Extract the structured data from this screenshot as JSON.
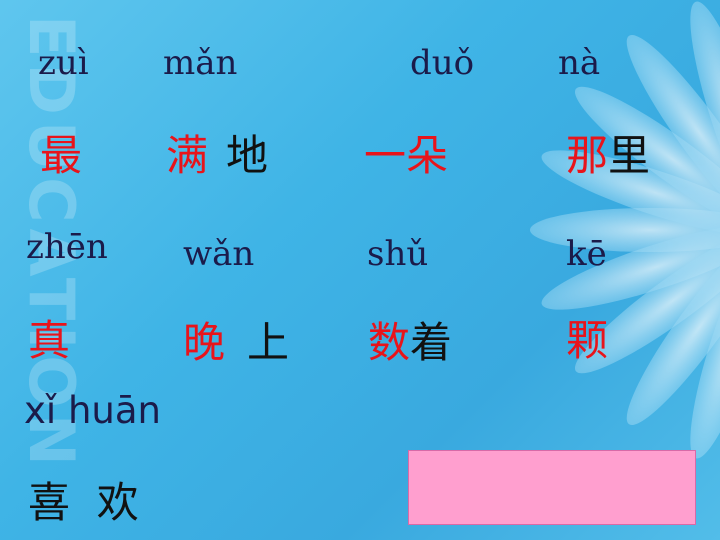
{
  "colors": {
    "background": "#3fb4e6",
    "red_char": "#e8141b",
    "black_char": "#111111",
    "pinyin": "#1b1b4a",
    "box": "#ff9fcf"
  },
  "watermark": "EDUCATION",
  "row1": {
    "pinyin": [
      "zuì",
      "mǎn",
      "duǒ",
      "nà"
    ],
    "words": {
      "w1_red": "最",
      "w2_red": "满",
      "w2_black": "地",
      "w3_red": "一朵",
      "w4_red": "那",
      "w4_black": "里"
    }
  },
  "row2": {
    "pinyin": [
      "zhēn",
      "wǎn",
      "shǔ",
      "kē"
    ],
    "words": {
      "w1_red": "真",
      "w2_red": "晚",
      "w2_black": "上",
      "w3_red": "数",
      "w3_black": "着",
      "w4_red": "颗"
    }
  },
  "row3": {
    "pinyin": "xǐ huān",
    "word": "喜  欢"
  }
}
